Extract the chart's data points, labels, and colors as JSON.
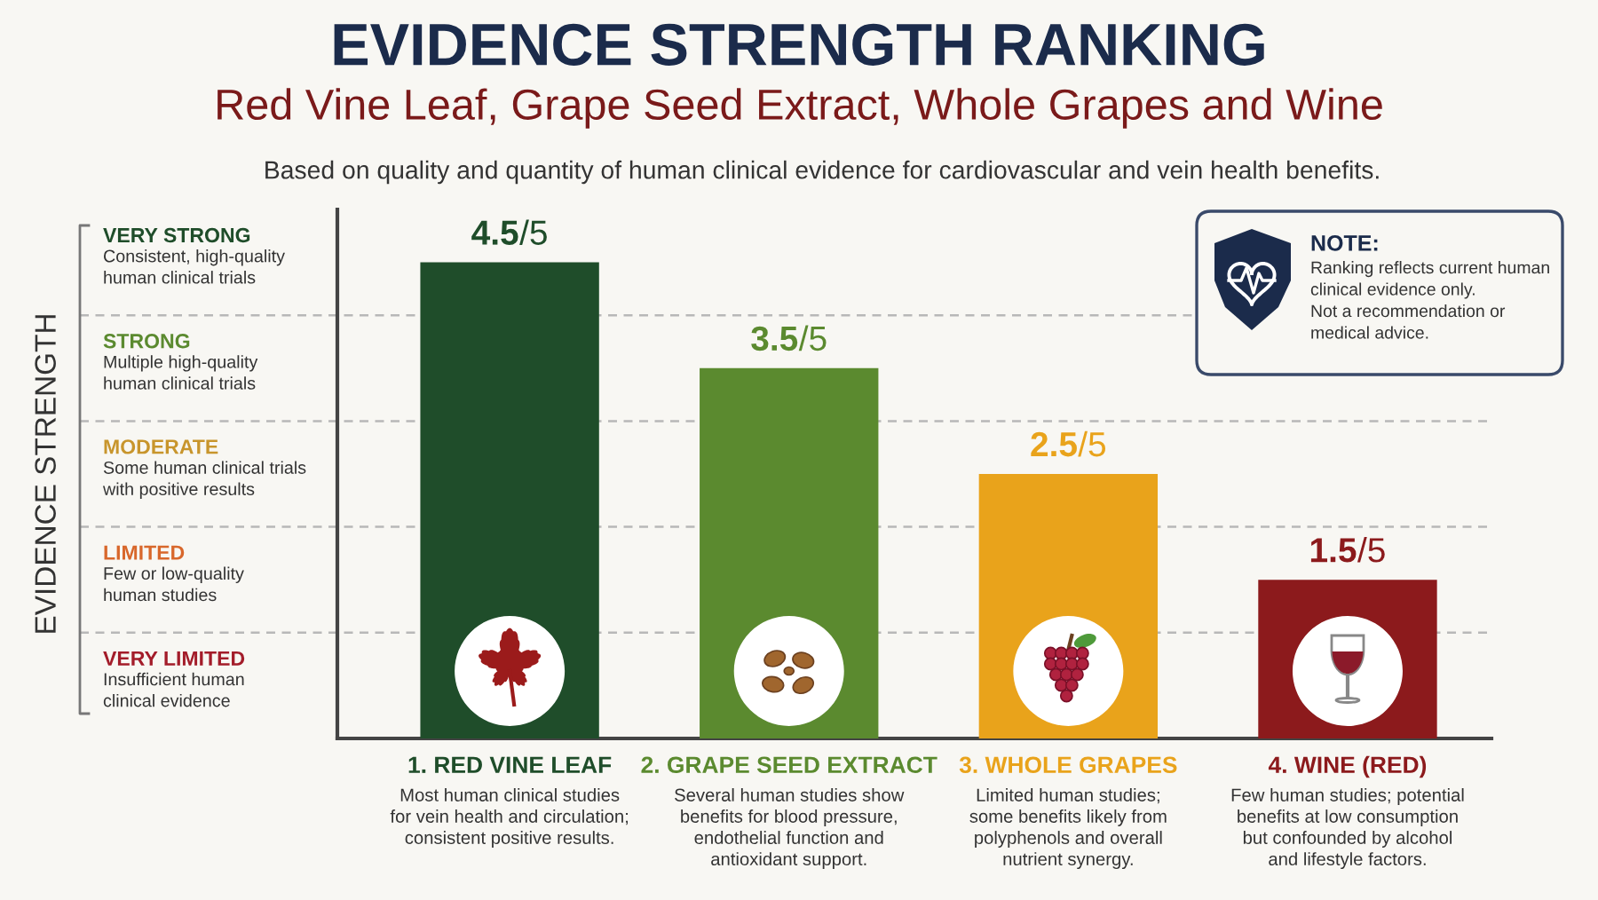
{
  "chart_data": {
    "type": "bar",
    "title": "EVIDENCE STRENGTH RANKING",
    "subtitle": "Red Vine Leaf, Grape Seed Extract, Whole Grapes and Wine",
    "categories": [
      "1. RED VINE LEAF\nMost human clinical studies\nfor vein health and circulation;\nconsistent positive results.",
      "2. GRAPE SEED EXTRACT\nSeveral human studies show\nbenefits for blood pressure,\nendothelial function and\nantioxidant support.",
      "3. WHOLE GRAPES\nLimited human studies;\nsome benefits likely from\npolyphenols and overall\nnutrient synergy.",
      "4. WINE (RED)\nFew human studies; potential\nbenefits at low consumption\nbut confounded by alcohol\nand lifestyle factors."
    ],
    "values": [
      4.5,
      3.5,
      2.5,
      1.5
    ],
    "colors": [
      "#1f4d2a",
      "#5b8a2f",
      "#e9a31b",
      "#8c1a1c"
    ],
    "data_labels": true,
    "ylim": [
      0,
      5
    ],
    "tick_labels": "x",
    "ref_lines": [
      {
        "axis": "y",
        "value": 4,
        "color": "#b8b8b8",
        "line_style": "dashed"
      },
      {
        "axis": "y",
        "value": 3,
        "color": "#b8b8b8",
        "line_style": "dashed"
      },
      {
        "axis": "y",
        "value": 2,
        "color": "#b8b8b8",
        "line_style": "dashed"
      },
      {
        "axis": "y",
        "value": 1,
        "color": "#b8b8b8",
        "line_style": "dashed"
      }
    ],
    "annotations": [
      "Based on quality and quantity of human clinical evidence for cardiovascular and vein health benefits.",
      "EVIDENCE STRENGTH",
      "VERY STRONG\nConsistent, high-quality\nhuman clinical trials",
      "STRONG\nMultiple high-quality\nhuman clinical trials",
      "MODERATE\nSome human clinical trials\nwith positive results",
      "LIMITED\nFew or low-quality\nhuman studies",
      "VERY LIMITED\nInsufficient human\nclinical evidence",
      "NOTE:\nRanking reflects current human\nclinical evidence only.\nNot a recommendation or\nmedical advice.",
      {
        "text": "/5",
        "x": "1. RED VINE LEAF\nMost human clinical studies\nfor vein health and circulation;\nconsistent positive results.",
        "y": 4.5
      },
      {
        "text": "/5",
        "x": "2. GRAPE SEED EXTRACT\nSeveral human studies show\nbenefits for blood pressure,\nendothelial function and\nantioxidant support.",
        "y": 3.5
      },
      {
        "text": "/5",
        "x": "3. WHOLE GRAPES\nLimited human studies;\nsome benefits likely from\npolyphenols and overall\nnutrient synergy.",
        "y": 2.5
      },
      {
        "text": "/5",
        "x": "4. WINE (RED)\nFew human studies; potential\nbenefits at low consumption\nbut confounded by alcohol\nand lifestyle factors.",
        "y": 1.5
      }
    ]
  }
}
